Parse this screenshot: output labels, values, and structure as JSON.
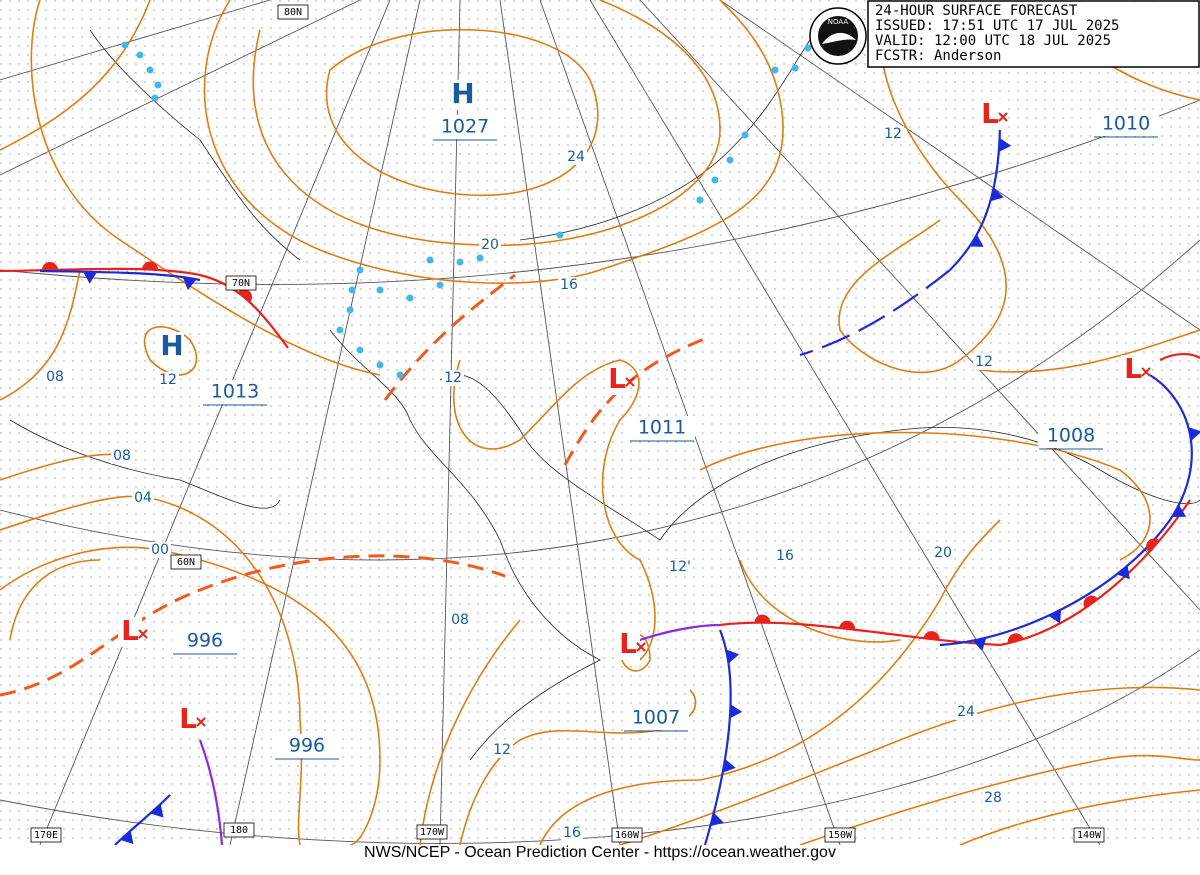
{
  "header": {
    "lines": [
      "24-HOUR SURFACE FORECAST",
      "ISSUED: 17:51 UTC 17 JUL 2025",
      "VALID:  12:00 UTC 18 JUL 2025",
      "FCSTR:  Anderson"
    ],
    "logo": "NOAA"
  },
  "centers": [
    {
      "symbol": "H",
      "pressure": "1027"
    },
    {
      "symbol": "H",
      "pressure": "1013"
    },
    {
      "symbol": "L",
      "pressure": "1011"
    },
    {
      "symbol": "L",
      "pressure": "1010"
    },
    {
      "symbol": "L",
      "pressure": "1008"
    },
    {
      "symbol": "L",
      "pressure": "996"
    },
    {
      "symbol": "L",
      "pressure": "996"
    },
    {
      "symbol": "L",
      "pressure": "1007"
    }
  ],
  "isobar_labels": [
    "24",
    "20",
    "16",
    "12",
    "12",
    "12",
    "08",
    "12",
    "08",
    "04",
    "00",
    "16",
    "20",
    "12'",
    "08",
    "12",
    "24",
    "28",
    "16"
  ],
  "grid_labels": [
    "80N",
    "70N",
    "60N",
    "170E",
    "180",
    "170W",
    "160W",
    "150W",
    "140W"
  ],
  "footer": "NWS/NCEP - Ocean Prediction Center - https://ocean.weather.gov"
}
